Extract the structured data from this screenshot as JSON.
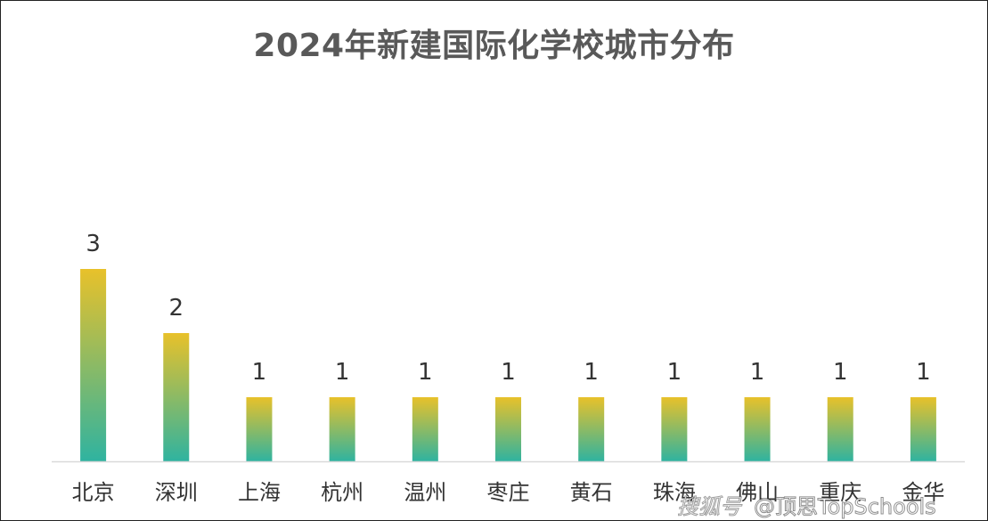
{
  "chart_data": {
    "type": "bar",
    "title": "2024年新建国际化学校城市分布",
    "categories": [
      "北京",
      "深圳",
      "上海",
      "杭州",
      "温州",
      "枣庄",
      "黄石",
      "珠海",
      "佛山",
      "重庆",
      "金华"
    ],
    "values": [
      3,
      2,
      1,
      1,
      1,
      1,
      1,
      1,
      1,
      1,
      1
    ],
    "xlabel": "",
    "ylabel": "",
    "ylim": [
      0,
      4
    ],
    "grid": false,
    "data_labels": true,
    "colors": {
      "bar_top": "#e8c12a",
      "bar_bottom": "#2fb3a0",
      "axis": "#d9d9d9"
    }
  },
  "watermark": {
    "source": "搜狐号",
    "credit": "@顶思TopSchools"
  }
}
